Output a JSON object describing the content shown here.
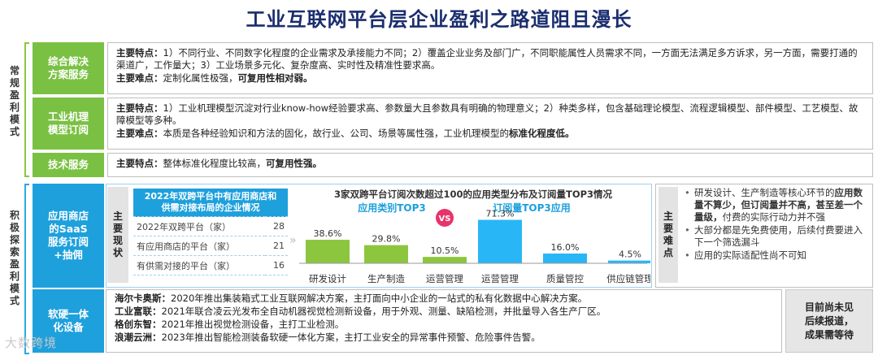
{
  "title": "工业互联网平台层企业盈利之路道阻且漫长",
  "side_labels": {
    "conventional": [
      "常",
      "规",
      "盈",
      "利",
      "模",
      "式"
    ],
    "exploring": [
      "积",
      "极",
      "探",
      "索",
      "盈",
      "利",
      "模",
      "式"
    ]
  },
  "categories": {
    "integrated": [
      "综合解决",
      "方案服务"
    ],
    "mechanism": [
      "工业机理",
      "模型订阅"
    ],
    "tech": [
      "技术服务"
    ],
    "appstore": [
      "应用商店",
      "的SaaS",
      "服务订阅",
      "+抽佣"
    ],
    "hardware": [
      "软硬一体",
      "化设备"
    ]
  },
  "integrated": {
    "feat_label": "主要特点：",
    "feat_text": "1）不同行业、不同数字化程度的企业需求及承接能力不同；2）覆盖企业业务及部门广，不同职能属性人员需求不同，一方面无法满足多方诉求，另一方面，需要打通的渠道广，工作量大；3）工业场景多元化、复杂度高、实时性及精准性要求高。",
    "diff_label": "主要难点：",
    "diff_text": "定制化属性极强，",
    "diff_bold": "可复用性相对弱。"
  },
  "mechanism": {
    "feat_label": "主要特点：",
    "feat_text": "1）工业机理模型沉淀对行业know-how经验要求高、参数量大且参数具有明确的物理意义；2）种类多样，包含基础理论模型、流程逻辑模型、部件模型、工艺模型、故障模型等多种。",
    "diff_label": "主要难点：",
    "diff_text": "本质是各种经验知识和方法的固化，故行业、公司、场景等属性强，工业机理模型的",
    "diff_bold": "标准化程度低。"
  },
  "tech": {
    "feat_label": "主要特点：",
    "feat_text": "整体标准化程度比较高，",
    "feat_bold": "可复用性强。"
  },
  "current": {
    "label": [
      "主",
      "要",
      "现",
      "状"
    ],
    "table_header": [
      "2022年双跨平台中有应用商店和",
      "供需对接布局的企业情况"
    ],
    "rows": [
      {
        "name": "2022年双跨平台（家）",
        "value": "28"
      },
      {
        "name": "有应用商店的平台（家）",
        "value": "21"
      },
      {
        "name": "有供需对接的平台（家）",
        "value": "16"
      }
    ]
  },
  "chart_data": {
    "type": "bar",
    "title": "3家双跨平台订阅次数超过100的应用类型分布及订阅量TOP3情况",
    "vs_label": "VS",
    "series": [
      {
        "name": "应用类别TOP3",
        "color": "#8cc63f",
        "categories": [
          "研发设计",
          "生产制造",
          "运营管理"
        ],
        "values": [
          38.6,
          29.8,
          10.5
        ],
        "labels": [
          "38.6%",
          "29.8%",
          "10.5%"
        ]
      },
      {
        "name": "订阅量TOP3应用",
        "color": "#29b6f6",
        "categories": [
          "运营管理",
          "质量管控",
          "供应链管理"
        ],
        "values": [
          71.3,
          16.0,
          4.5
        ],
        "labels": [
          "71.3%",
          "16.0%",
          "4.5%"
        ]
      }
    ],
    "ylim": [
      0,
      80
    ]
  },
  "difficulty": {
    "label": [
      "主",
      "要",
      "难",
      "点"
    ],
    "items": [
      {
        "pre": "研发设计、生产制造等核心环节的",
        "bold": "应用数量不算少，但订阅量并不高，甚至差一个量级，",
        "post": "付费的实际行动力并不强"
      },
      {
        "pre": "大部分都是先免费使用，后续付费要进入下一个筛选漏斗",
        "bold": "",
        "post": ""
      },
      {
        "pre": "应用的实际适配性尚不可知",
        "bold": "",
        "post": ""
      }
    ]
  },
  "hardware": {
    "rows": [
      {
        "company": "海尔卡奥斯：",
        "text": "2020年推出集装箱式工业互联网解决方案，主打面向中小企业的一站式的私有化数据中心解决方案。"
      },
      {
        "company": "工业富联：",
        "text": "2021年联合凌云光发布全自动机器视觉检测新设备，用于外观、测量、缺陷检测，并批量导入各生产厂区。"
      },
      {
        "company": "格创东智：",
        "text": "2021年推出视觉检测设备，主打工业检测。"
      },
      {
        "company": "浪潮云洲：",
        "text": "2023年推出智能检测装备软硬一体化方案，主打工业安全的异常事件预警、危险事件告警。"
      }
    ],
    "status": [
      "目前尚未见",
      "后续报道，",
      "成果需等待"
    ]
  },
  "watermark": "大数跨境"
}
